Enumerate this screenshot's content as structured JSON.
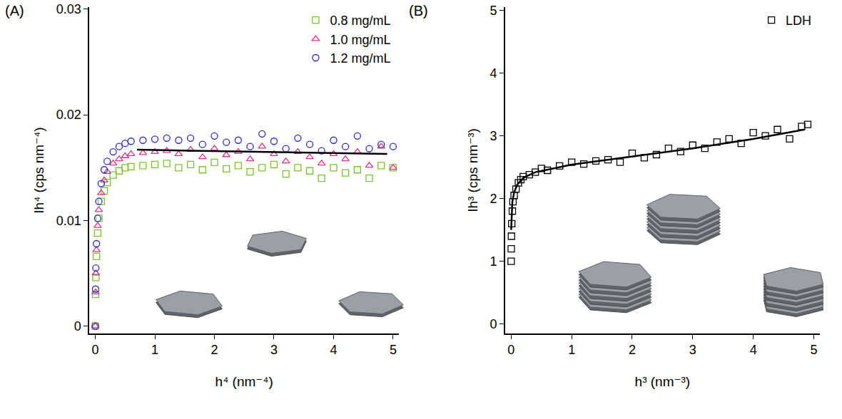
{
  "chart_data": [
    {
      "type": "scatter",
      "title": "(A)",
      "x_label": "h⁴ (nm⁻⁴)",
      "y_label": "Ih⁴ (cps nm⁻⁴)",
      "xlim": [
        -0.1,
        5.1
      ],
      "xticks": [
        0,
        1,
        2,
        3,
        4,
        5
      ],
      "ylim": [
        -0.0007,
        0.0302
      ],
      "yticks": [
        0,
        0.01,
        0.02,
        0.03
      ],
      "grid": false,
      "legend": "top right",
      "x": [
        0,
        0.005,
        0.01,
        0.02,
        0.04,
        0.06,
        0.1,
        0.15,
        0.2,
        0.3,
        0.4,
        0.5,
        0.6,
        0.8,
        1.0,
        1.2,
        1.4,
        1.6,
        1.8,
        2.0,
        2.2,
        2.4,
        2.6,
        2.8,
        3.0,
        3.2,
        3.4,
        3.6,
        3.8,
        4.0,
        4.2,
        4.4,
        4.6,
        4.8,
        5.0
      ],
      "series": [
        {
          "name": "0.8 mg/mL",
          "color": "#7dc42a",
          "marker": "square-open",
          "values": [
            0,
            0.003,
            0.0046,
            0.0066,
            0.0088,
            0.0102,
            0.0118,
            0.0128,
            0.0136,
            0.0143,
            0.0147,
            0.015,
            0.0151,
            0.0152,
            0.0153,
            0.0154,
            0.015,
            0.0153,
            0.0148,
            0.0155,
            0.0149,
            0.0152,
            0.0146,
            0.015,
            0.0153,
            0.0144,
            0.015,
            0.0147,
            0.014,
            0.015,
            0.0145,
            0.0148,
            0.014,
            0.0152,
            0.015
          ]
        },
        {
          "name": "1.0 mg/mL",
          "color": "#e0338a",
          "marker": "triangle-up-open",
          "values": [
            0,
            0.0032,
            0.005,
            0.0072,
            0.0095,
            0.011,
            0.0126,
            0.0138,
            0.0146,
            0.0154,
            0.0158,
            0.0161,
            0.0163,
            0.0164,
            0.0165,
            0.0166,
            0.0163,
            0.0167,
            0.016,
            0.0168,
            0.0162,
            0.0165,
            0.0158,
            0.017,
            0.0163,
            0.0156,
            0.0165,
            0.016,
            0.0154,
            0.0163,
            0.0158,
            0.0165,
            0.0152,
            0.017,
            0.015
          ]
        },
        {
          "name": "1.2 mg/mL",
          "color": "#2a2ad0",
          "marker": "circle-open",
          "values": [
            0,
            0.0035,
            0.0055,
            0.0078,
            0.0102,
            0.0118,
            0.0135,
            0.0148,
            0.0156,
            0.0165,
            0.017,
            0.0173,
            0.0175,
            0.0176,
            0.0177,
            0.0178,
            0.0176,
            0.0178,
            0.0172,
            0.018,
            0.0174,
            0.0176,
            0.017,
            0.0182,
            0.0175,
            0.0168,
            0.0178,
            0.0172,
            0.0166,
            0.0176,
            0.017,
            0.018,
            0.0168,
            0.0172,
            0.017
          ]
        },
        {
          "type": "line",
          "color": "#000000",
          "line_style": "solid",
          "x": [
            0.7,
            4.9
          ],
          "values": [
            0.0167,
            0.0163
          ]
        }
      ]
    },
    {
      "type": "scatter",
      "title": "(B)",
      "x_label": "h³ (nm⁻³)",
      "y_label": "Ih³ (cps nm⁻³)",
      "xlim": [
        -0.1,
        5.1
      ],
      "xticks": [
        0,
        1,
        2,
        3,
        4,
        5
      ],
      "ylim": [
        -0.15,
        5.05
      ],
      "yticks": [
        0,
        1,
        2,
        3,
        4,
        5
      ],
      "grid": false,
      "legend": "top right",
      "x": [
        0,
        0.002,
        0.005,
        0.01,
        0.02,
        0.03,
        0.05,
        0.08,
        0.12,
        0.16,
        0.2,
        0.3,
        0.4,
        0.5,
        0.6,
        0.8,
        1.0,
        1.2,
        1.4,
        1.6,
        1.8,
        2.0,
        2.2,
        2.4,
        2.6,
        2.8,
        3.0,
        3.2,
        3.4,
        3.6,
        3.8,
        4.0,
        4.2,
        4.4,
        4.6,
        4.8,
        4.9
      ],
      "series": [
        {
          "name": "LDH",
          "color": "#000000",
          "marker": "square-open",
          "values": [
            1.0,
            1.2,
            1.4,
            1.6,
            1.8,
            1.95,
            2.05,
            2.15,
            2.25,
            2.3,
            2.35,
            2.38,
            2.42,
            2.48,
            2.45,
            2.52,
            2.58,
            2.55,
            2.6,
            2.62,
            2.58,
            2.72,
            2.65,
            2.7,
            2.8,
            2.75,
            2.85,
            2.8,
            2.9,
            2.95,
            2.88,
            3.05,
            3.0,
            3.1,
            2.95,
            3.15,
            3.18
          ]
        },
        {
          "type": "line",
          "color": "#000000",
          "line_style": "solid",
          "x": [
            0,
            0.02,
            0.05,
            0.1,
            0.2,
            0.4,
            1,
            2,
            3,
            4,
            4.85
          ],
          "values": [
            1.5,
            1.95,
            2.1,
            2.22,
            2.33,
            2.42,
            2.54,
            2.67,
            2.8,
            2.95,
            3.1
          ]
        }
      ]
    }
  ]
}
